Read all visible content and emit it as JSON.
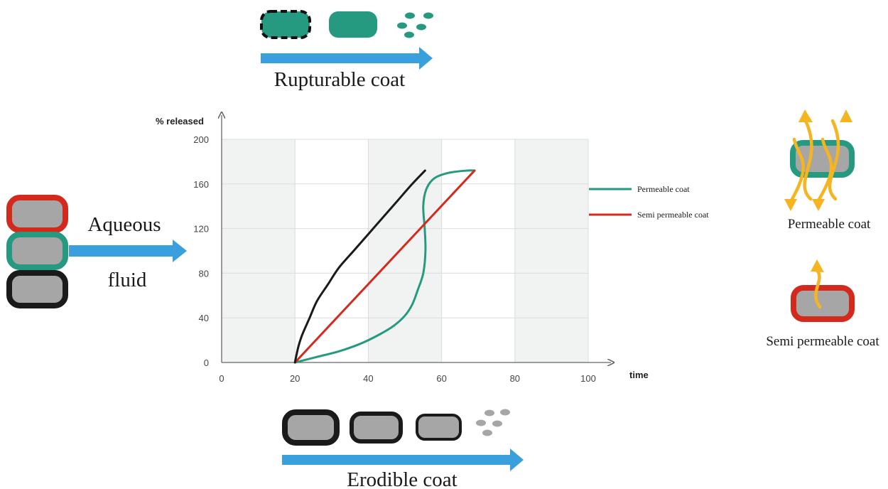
{
  "labels": {
    "rupturable": "Rupturable coat",
    "erodible": "Erodible coat",
    "aqueous": "Aqueous",
    "fluid": "fluid",
    "permeable_side": "Permeable coat",
    "semi_permeable_side": "Semi permeable coat"
  },
  "colors": {
    "green": "#259a80",
    "red": "#d42a1e",
    "black": "#1a1a1a",
    "core_gray": "#a6a6a6",
    "arrow_blue": "#3aa0dd",
    "orange": "#f5b421",
    "grid_band": "#f1f3f2"
  },
  "chart_data": {
    "type": "line",
    "ylabel": "% released",
    "xlabel": "time",
    "xlim": [
      0,
      100
    ],
    "ylim": [
      0,
      200
    ],
    "xticks": [
      0,
      20,
      40,
      60,
      80,
      100
    ],
    "yticks": [
      0,
      40,
      80,
      120,
      160,
      200
    ],
    "grid": true,
    "legend_position": "right",
    "series": [
      {
        "name": "Permeable coat",
        "color": "#259a80",
        "points": [
          [
            20,
            0
          ],
          [
            26,
            5
          ],
          [
            32,
            10
          ],
          [
            38,
            17
          ],
          [
            43,
            25
          ],
          [
            47,
            33
          ],
          [
            50,
            42
          ],
          [
            52,
            52
          ],
          [
            53.5,
            65
          ],
          [
            55,
            80
          ],
          [
            55.6,
            100
          ],
          [
            55.4,
            120
          ],
          [
            55,
            140
          ],
          [
            55.8,
            155
          ],
          [
            58,
            165
          ],
          [
            62,
            170
          ],
          [
            67,
            172
          ],
          [
            69,
            172
          ]
        ]
      },
      {
        "name": "Semi permeable coat",
        "color": "#d42a1e",
        "points": [
          [
            20,
            0
          ],
          [
            69,
            172
          ]
        ]
      },
      {
        "color": "#1a1a1a",
        "points": [
          [
            20,
            0
          ],
          [
            20.3,
            5
          ],
          [
            21,
            15
          ],
          [
            22,
            25
          ],
          [
            24,
            40
          ],
          [
            26,
            55
          ],
          [
            29,
            70
          ],
          [
            32,
            85
          ],
          [
            36,
            100
          ],
          [
            40,
            115
          ],
          [
            44,
            130
          ],
          [
            48,
            145
          ],
          [
            52,
            160
          ],
          [
            55.5,
            172
          ]
        ]
      }
    ]
  }
}
